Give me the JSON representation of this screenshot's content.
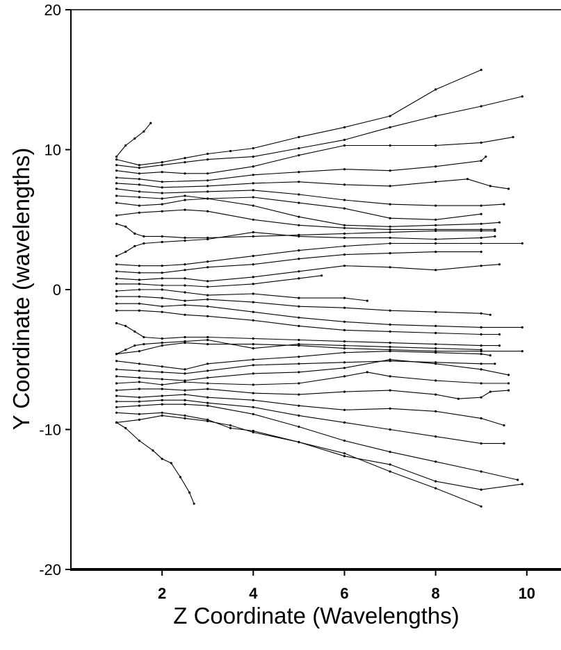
{
  "chart_data": {
    "type": "line",
    "title": "",
    "xlabel": "Z Coordinate (Wavelengths)",
    "ylabel": "Y Coordinate (wavelengths)",
    "xlim": [
      0,
      10.75
    ],
    "ylim": [
      -20,
      20
    ],
    "x_ticks": [
      2,
      4,
      6,
      8,
      10
    ],
    "y_ticks": [
      -20,
      -10,
      0,
      10,
      20
    ],
    "x_tick_labels": [
      "2",
      "4",
      "6",
      "8",
      "10"
    ],
    "y_tick_labels": [
      "-20",
      "-10",
      "0",
      "10",
      "20"
    ],
    "grid": false,
    "legend": "none",
    "line_color": "#000000",
    "series": [
      {
        "x": [
          1.0,
          1.2,
          1.4,
          1.6,
          1.75
        ],
        "y": [
          9.5,
          10.3,
          10.8,
          11.3,
          11.9
        ]
      },
      {
        "x": [
          1.0,
          1.5,
          2.0,
          2.5,
          3.0,
          3.5,
          4.0,
          5.0,
          6.0,
          7.0,
          8.0,
          9.0
        ],
        "y": [
          9.3,
          8.9,
          9.1,
          9.4,
          9.7,
          9.9,
          10.1,
          10.9,
          11.6,
          12.4,
          14.3,
          15.7
        ]
      },
      {
        "x": [
          1.0,
          1.5,
          2.0,
          2.5,
          3.0,
          4.0,
          5.0,
          6.0,
          7.0,
          8.0,
          9.0,
          9.9
        ],
        "y": [
          8.9,
          8.7,
          8.9,
          9.1,
          9.3,
          9.5,
          10.1,
          10.7,
          11.6,
          12.4,
          13.1,
          13.8
        ]
      },
      {
        "x": [
          1.0,
          1.5,
          2.0,
          2.5,
          3.0,
          4.0,
          5.0,
          6.0,
          7.0,
          8.0,
          9.0,
          9.7
        ],
        "y": [
          8.5,
          8.3,
          8.4,
          8.3,
          8.3,
          8.8,
          9.6,
          10.3,
          10.3,
          10.3,
          10.5,
          10.9
        ]
      },
      {
        "x": [
          1.0,
          1.5,
          2.0,
          3.0,
          4.0,
          5.0,
          6.0,
          7.0,
          8.0,
          9.0,
          9.1
        ],
        "y": [
          8.0,
          7.9,
          7.7,
          7.8,
          8.2,
          8.4,
          8.6,
          8.5,
          8.8,
          9.2,
          9.5
        ]
      },
      {
        "x": [
          1.0,
          1.5,
          2.0,
          3.0,
          4.0,
          5.0,
          6.0,
          7.0,
          8.0,
          8.7,
          9.2,
          9.6
        ],
        "y": [
          7.6,
          7.5,
          7.3,
          7.4,
          7.6,
          7.7,
          7.5,
          7.4,
          7.7,
          7.9,
          7.4,
          7.2
        ]
      },
      {
        "x": [
          1.0,
          1.5,
          2.0,
          3.0,
          4.0,
          5.0,
          6.0,
          7.0,
          8.0,
          9.0,
          9.5
        ],
        "y": [
          7.2,
          7.0,
          6.9,
          7.0,
          7.1,
          6.8,
          6.4,
          6.1,
          6.0,
          6.0,
          6.1
        ]
      },
      {
        "x": [
          1.0,
          1.5,
          2.0,
          2.5,
          3.0,
          4.0,
          5.0,
          6.0,
          7.0,
          8.0,
          9.0
        ],
        "y": [
          6.7,
          6.6,
          6.5,
          6.7,
          6.5,
          6.6,
          6.2,
          5.8,
          5.1,
          5.0,
          5.4
        ]
      },
      {
        "x": [
          1.0,
          1.5,
          2.0,
          2.5,
          3.0,
          4.0,
          5.0,
          6.0,
          7.0,
          8.0,
          9.0,
          9.4
        ],
        "y": [
          6.2,
          6.0,
          6.1,
          6.4,
          6.5,
          6.0,
          5.2,
          4.6,
          4.5,
          4.6,
          4.7,
          4.8
        ]
      },
      {
        "x": [
          1.0,
          1.5,
          2.0,
          2.5,
          3.0,
          4.0,
          5.0,
          6.0,
          7.0,
          8.0,
          9.0,
          9.3
        ],
        "y": [
          5.3,
          5.5,
          5.6,
          5.7,
          5.6,
          5.0,
          4.6,
          4.4,
          4.3,
          4.3,
          4.3,
          4.3
        ]
      },
      {
        "x": [
          1.0,
          1.2,
          1.4,
          1.6,
          2.0,
          2.5,
          3.0,
          4.0,
          5.0,
          6.0,
          7.0,
          8.0,
          9.0,
          9.3
        ],
        "y": [
          4.7,
          4.5,
          4.0,
          3.8,
          3.8,
          3.7,
          3.7,
          3.8,
          3.9,
          4.0,
          4.1,
          4.2,
          4.2,
          4.2
        ]
      },
      {
        "x": [
          1.0,
          1.2,
          1.4,
          1.6,
          2.0,
          2.5,
          3.0,
          4.0,
          5.0,
          6.0,
          7.0,
          8.0,
          9.0,
          9.3
        ],
        "y": [
          2.4,
          2.7,
          3.1,
          3.3,
          3.4,
          3.5,
          3.6,
          4.1,
          3.8,
          3.7,
          3.7,
          3.6,
          3.7,
          3.8
        ]
      },
      {
        "x": [
          1.0,
          1.5,
          2.0,
          2.5,
          3.0,
          4.0,
          5.0,
          6.0,
          7.0,
          8.0,
          9.0,
          9.9
        ],
        "y": [
          1.8,
          1.7,
          1.7,
          1.8,
          2.0,
          2.4,
          2.8,
          3.1,
          3.3,
          3.3,
          3.3,
          3.3
        ]
      },
      {
        "x": [
          1.0,
          1.5,
          2.0,
          2.5,
          3.0,
          4.0,
          5.0,
          6.0,
          7.0,
          8.0,
          9.0
        ],
        "y": [
          1.3,
          1.2,
          1.2,
          1.4,
          1.6,
          1.8,
          2.2,
          2.5,
          2.6,
          2.7,
          2.7
        ]
      },
      {
        "x": [
          1.0,
          1.5,
          2.0,
          2.5,
          3.0,
          4.0,
          5.0,
          6.0,
          7.0,
          8.0,
          9.0,
          9.4
        ],
        "y": [
          0.8,
          0.7,
          0.8,
          0.8,
          0.6,
          0.9,
          1.3,
          1.7,
          1.6,
          1.4,
          1.7,
          1.8
        ]
      },
      {
        "x": [
          1.0,
          1.5,
          2.0,
          2.5,
          3.0,
          4.0,
          5.0,
          5.5
        ],
        "y": [
          0.4,
          0.4,
          0.3,
          0.3,
          0.2,
          0.4,
          0.8,
          1.0
        ]
      },
      {
        "x": [
          1.0,
          1.5,
          2.0,
          2.5,
          3.0,
          4.0,
          5.0,
          6.0,
          6.5
        ],
        "y": [
          -0.1,
          0.0,
          0.0,
          -0.2,
          -0.4,
          -0.3,
          -0.6,
          -0.6,
          -0.8
        ]
      },
      {
        "x": [
          1.0,
          1.5,
          2.0,
          2.5,
          3.0,
          4.0,
          5.0,
          6.0,
          7.0,
          8.0,
          9.0,
          9.2
        ],
        "y": [
          -0.5,
          -0.5,
          -0.6,
          -0.8,
          -0.7,
          -0.9,
          -1.2,
          -1.3,
          -1.5,
          -1.6,
          -1.7,
          -1.8
        ]
      },
      {
        "x": [
          1.0,
          1.5,
          2.0,
          2.5,
          3.0,
          4.0,
          5.0,
          6.0,
          7.0,
          8.0,
          9.0,
          9.9
        ],
        "y": [
          -1.0,
          -1.0,
          -1.2,
          -1.1,
          -1.2,
          -1.6,
          -2.0,
          -2.3,
          -2.5,
          -2.6,
          -2.7,
          -2.7
        ]
      },
      {
        "x": [
          1.0,
          1.5,
          2.0,
          2.5,
          3.0,
          4.0,
          5.0,
          6.0,
          7.0,
          8.0,
          9.0,
          9.4
        ],
        "y": [
          -1.5,
          -1.5,
          -1.6,
          -1.8,
          -1.9,
          -2.2,
          -2.6,
          -2.9,
          -3.0,
          -3.1,
          -3.2,
          -3.2
        ]
      },
      {
        "x": [
          1.0,
          1.2,
          1.4,
          1.6,
          2.0,
          2.5,
          3.0,
          4.0,
          5.0,
          6.0,
          7.0,
          8.0,
          9.0,
          9.4
        ],
        "y": [
          -2.4,
          -2.6,
          -3.0,
          -3.4,
          -3.5,
          -3.4,
          -3.4,
          -3.5,
          -3.6,
          -3.7,
          -3.8,
          -3.9,
          -4.0,
          -4.0
        ]
      },
      {
        "x": [
          1.0,
          1.5,
          2.0,
          2.5,
          3.0,
          4.0,
          5.0,
          6.0,
          7.0,
          8.0,
          9.0,
          9.9
        ],
        "y": [
          -4.6,
          -4.4,
          -4.0,
          -3.8,
          -3.9,
          -3.9,
          -4.0,
          -4.2,
          -4.3,
          -4.4,
          -4.4,
          -4.4
        ]
      },
      {
        "x": [
          1.0,
          1.2,
          1.4,
          1.6,
          2.0,
          2.5,
          3.0,
          4.0,
          5.0,
          6.0,
          7.0,
          8.0,
          9.0
        ],
        "y": [
          -4.6,
          -4.3,
          -4.0,
          -3.9,
          -3.8,
          -3.7,
          -3.6,
          -4.2,
          -3.9,
          -4.0,
          -4.1,
          -4.2,
          -4.3
        ]
      },
      {
        "x": [
          1.0,
          1.5,
          2.0,
          2.5,
          3.0,
          4.0,
          5.0,
          6.0,
          7.0,
          8.0,
          9.0,
          9.2
        ],
        "y": [
          -5.1,
          -5.3,
          -5.5,
          -5.7,
          -5.3,
          -5.0,
          -4.8,
          -4.5,
          -4.4,
          -4.5,
          -4.6,
          -4.7
        ]
      },
      {
        "x": [
          1.0,
          1.5,
          2.0,
          2.5,
          3.0,
          4.0,
          5.0,
          6.0,
          7.0,
          8.0,
          9.0,
          9.3
        ],
        "y": [
          -5.7,
          -5.8,
          -5.9,
          -6.0,
          -5.8,
          -5.4,
          -5.3,
          -5.2,
          -5.1,
          -5.2,
          -5.3,
          -5.3
        ]
      },
      {
        "x": [
          1.0,
          1.5,
          2.0,
          2.5,
          3.0,
          4.0,
          5.0,
          6.0,
          7.0,
          8.0,
          9.0,
          9.6
        ],
        "y": [
          -6.2,
          -6.3,
          -6.4,
          -6.5,
          -6.3,
          -6.0,
          -5.9,
          -5.6,
          -5.0,
          -5.3,
          -5.7,
          -6.1
        ]
      },
      {
        "x": [
          1.0,
          1.5,
          2.0,
          2.5,
          3.0,
          4.0,
          5.0,
          6.0,
          6.5,
          7.0,
          8.0,
          9.0,
          9.6
        ],
        "y": [
          -6.7,
          -6.6,
          -6.8,
          -6.6,
          -6.7,
          -6.8,
          -6.7,
          -6.2,
          -5.9,
          -6.2,
          -6.5,
          -6.7,
          -6.7
        ]
      },
      {
        "x": [
          1.0,
          1.5,
          2.0,
          2.5,
          3.0,
          4.0,
          5.0,
          6.0,
          7.0,
          8.0,
          8.5,
          9.0,
          9.2,
          9.6
        ],
        "y": [
          -7.2,
          -7.1,
          -7.1,
          -7.2,
          -7.1,
          -7.4,
          -7.5,
          -7.3,
          -7.2,
          -7.5,
          -7.8,
          -7.7,
          -7.3,
          -7.2
        ]
      },
      {
        "x": [
          1.0,
          1.5,
          2.0,
          2.5,
          3.0,
          4.0,
          5.0,
          6.0,
          7.0,
          8.0,
          9.0,
          9.5
        ],
        "y": [
          -7.6,
          -7.7,
          -7.6,
          -7.5,
          -7.7,
          -7.9,
          -8.3,
          -8.6,
          -8.5,
          -8.7,
          -9.2,
          -9.7
        ]
      },
      {
        "x": [
          1.0,
          1.5,
          2.0,
          2.5,
          3.0,
          4.0,
          5.0,
          6.0,
          7.0,
          8.0,
          9.0,
          9.5
        ],
        "y": [
          -8.0,
          -8.0,
          -7.9,
          -7.9,
          -8.1,
          -8.4,
          -9.0,
          -9.5,
          -10.0,
          -10.5,
          -11.0,
          -11.0
        ]
      },
      {
        "x": [
          1.0,
          1.5,
          2.0,
          2.5,
          3.0,
          4.0,
          5.0,
          6.0,
          7.0,
          8.0,
          9.0,
          9.8
        ],
        "y": [
          -8.4,
          -8.3,
          -8.2,
          -8.2,
          -8.3,
          -8.9,
          -9.8,
          -10.8,
          -11.6,
          -12.3,
          -13.0,
          -13.6
        ]
      },
      {
        "x": [
          1.0,
          1.5,
          2.0,
          2.5,
          3.0,
          3.5,
          4.0,
          5.0,
          6.0,
          7.0,
          8.0,
          9.0,
          9.9
        ],
        "y": [
          -8.8,
          -8.9,
          -8.8,
          -9.0,
          -9.3,
          -9.9,
          -10.1,
          -10.9,
          -11.9,
          -12.5,
          -13.7,
          -14.3,
          -13.9
        ]
      },
      {
        "x": [
          1.0,
          1.5,
          2.0,
          2.5,
          3.0,
          3.5,
          4.0,
          5.0,
          6.0,
          7.0,
          8.0,
          9.0
        ],
        "y": [
          -9.5,
          -9.3,
          -9.0,
          -9.2,
          -9.4,
          -9.7,
          -10.2,
          -10.9,
          -11.7,
          -13.0,
          -14.2,
          -15.5
        ]
      },
      {
        "x": [
          1.0,
          1.2,
          1.5,
          1.8,
          2.0,
          2.2,
          2.4,
          2.6,
          2.7
        ],
        "y": [
          -9.5,
          -9.9,
          -10.8,
          -11.5,
          -12.1,
          -12.4,
          -13.4,
          -14.5,
          -15.3
        ]
      }
    ]
  }
}
